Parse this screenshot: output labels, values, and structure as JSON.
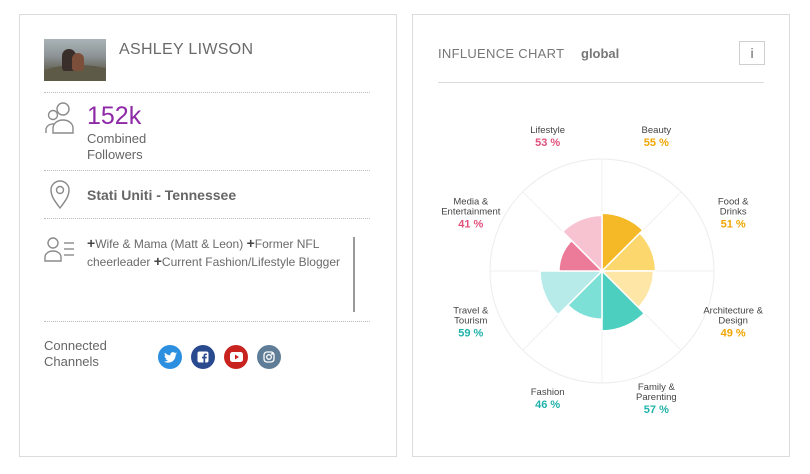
{
  "profile": {
    "name": "ASHLEY LIWSON",
    "followers_count": "152k",
    "followers_label": "Combined Followers",
    "location": "Stati Uniti - Tennessee",
    "bio": [
      "Wife & Mama (Matt & Leon)",
      "Former NFL cheerleader",
      "Current Fashion/Lifestyle Blogger"
    ],
    "bio_plus": "+",
    "connected_channels_label": "Connected Channels",
    "channels": [
      {
        "name": "twitter",
        "color": "#2d8fe0"
      },
      {
        "name": "facebook",
        "color": "#2a4a8f"
      },
      {
        "name": "youtube",
        "color": "#c8231f"
      },
      {
        "name": "instagram",
        "color": "#5f7d96"
      }
    ]
  },
  "chart": {
    "title": "INFLUENCE CHART",
    "scope": "global",
    "info_label": "i"
  },
  "chart_data": {
    "type": "polar-area",
    "categories": [
      {
        "name": "Beauty",
        "value": 55,
        "label": "55 %",
        "color": "#f5b928",
        "label_color": "#f0a500"
      },
      {
        "name": "Food & Drinks",
        "value": 51,
        "label": "51 %",
        "color": "#fbd76e",
        "label_color": "#f0a500"
      },
      {
        "name": "Architecture & Design",
        "value": 49,
        "label": "49 %",
        "color": "#fde6a6",
        "label_color": "#f0a500"
      },
      {
        "name": "Family & Parenting",
        "value": 57,
        "label": "57 %",
        "color": "#4dcfc0",
        "label_color": "#20b2aa"
      },
      {
        "name": "Fashion",
        "value": 46,
        "label": "46 %",
        "color": "#7de0d6",
        "label_color": "#20b2aa"
      },
      {
        "name": "Travel & Tourism",
        "value": 59,
        "label": "59 %",
        "color": "#b6ebe9",
        "label_color": "#20b2aa"
      },
      {
        "name": "Media & Entertainment",
        "value": 41,
        "label": "41 %",
        "color": "#ec7a99",
        "label_color": "#e0507a"
      },
      {
        "name": "Lifestyle",
        "value": 53,
        "label": "53 %",
        "color": "#f7c3d1",
        "label_color": "#e0507a"
      }
    ],
    "label_lines": [
      [
        "Beauty"
      ],
      [
        "Food &",
        "Drinks"
      ],
      [
        "Architecture &",
        "Design"
      ],
      [
        "Family &",
        "Parenting"
      ],
      [
        "Fashion"
      ],
      [
        "Travel &",
        "Tourism"
      ],
      [
        "Media &",
        "Entertainment"
      ],
      [
        "Lifestyle"
      ]
    ],
    "max": 100
  }
}
